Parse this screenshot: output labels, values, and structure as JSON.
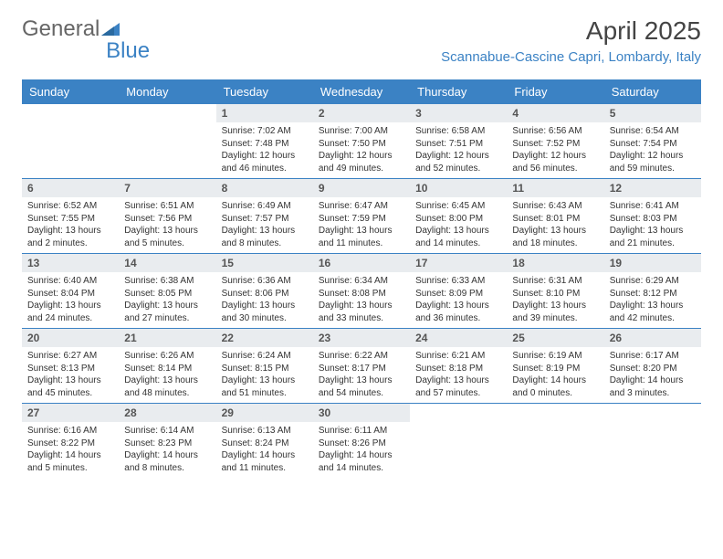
{
  "brand": {
    "part1": "General",
    "part2": "Blue"
  },
  "title": "April 2025",
  "location": "Scannabue-Cascine Capri, Lombardy, Italy",
  "colors": {
    "header_bg": "#3b82c4",
    "header_text": "#ffffff",
    "daynum_bg": "#e9ecef",
    "divider": "#3b82c4",
    "logo_blue": "#3b82c4",
    "logo_gray": "#666666"
  },
  "days_of_week": [
    "Sunday",
    "Monday",
    "Tuesday",
    "Wednesday",
    "Thursday",
    "Friday",
    "Saturday"
  ],
  "weeks": [
    [
      null,
      null,
      {
        "n": "1",
        "sunrise": "7:02 AM",
        "sunset": "7:48 PM",
        "daylight": "12 hours and 46 minutes."
      },
      {
        "n": "2",
        "sunrise": "7:00 AM",
        "sunset": "7:50 PM",
        "daylight": "12 hours and 49 minutes."
      },
      {
        "n": "3",
        "sunrise": "6:58 AM",
        "sunset": "7:51 PM",
        "daylight": "12 hours and 52 minutes."
      },
      {
        "n": "4",
        "sunrise": "6:56 AM",
        "sunset": "7:52 PM",
        "daylight": "12 hours and 56 minutes."
      },
      {
        "n": "5",
        "sunrise": "6:54 AM",
        "sunset": "7:54 PM",
        "daylight": "12 hours and 59 minutes."
      }
    ],
    [
      {
        "n": "6",
        "sunrise": "6:52 AM",
        "sunset": "7:55 PM",
        "daylight": "13 hours and 2 minutes."
      },
      {
        "n": "7",
        "sunrise": "6:51 AM",
        "sunset": "7:56 PM",
        "daylight": "13 hours and 5 minutes."
      },
      {
        "n": "8",
        "sunrise": "6:49 AM",
        "sunset": "7:57 PM",
        "daylight": "13 hours and 8 minutes."
      },
      {
        "n": "9",
        "sunrise": "6:47 AM",
        "sunset": "7:59 PM",
        "daylight": "13 hours and 11 minutes."
      },
      {
        "n": "10",
        "sunrise": "6:45 AM",
        "sunset": "8:00 PM",
        "daylight": "13 hours and 14 minutes."
      },
      {
        "n": "11",
        "sunrise": "6:43 AM",
        "sunset": "8:01 PM",
        "daylight": "13 hours and 18 minutes."
      },
      {
        "n": "12",
        "sunrise": "6:41 AM",
        "sunset": "8:03 PM",
        "daylight": "13 hours and 21 minutes."
      }
    ],
    [
      {
        "n": "13",
        "sunrise": "6:40 AM",
        "sunset": "8:04 PM",
        "daylight": "13 hours and 24 minutes."
      },
      {
        "n": "14",
        "sunrise": "6:38 AM",
        "sunset": "8:05 PM",
        "daylight": "13 hours and 27 minutes."
      },
      {
        "n": "15",
        "sunrise": "6:36 AM",
        "sunset": "8:06 PM",
        "daylight": "13 hours and 30 minutes."
      },
      {
        "n": "16",
        "sunrise": "6:34 AM",
        "sunset": "8:08 PM",
        "daylight": "13 hours and 33 minutes."
      },
      {
        "n": "17",
        "sunrise": "6:33 AM",
        "sunset": "8:09 PM",
        "daylight": "13 hours and 36 minutes."
      },
      {
        "n": "18",
        "sunrise": "6:31 AM",
        "sunset": "8:10 PM",
        "daylight": "13 hours and 39 minutes."
      },
      {
        "n": "19",
        "sunrise": "6:29 AM",
        "sunset": "8:12 PM",
        "daylight": "13 hours and 42 minutes."
      }
    ],
    [
      {
        "n": "20",
        "sunrise": "6:27 AM",
        "sunset": "8:13 PM",
        "daylight": "13 hours and 45 minutes."
      },
      {
        "n": "21",
        "sunrise": "6:26 AM",
        "sunset": "8:14 PM",
        "daylight": "13 hours and 48 minutes."
      },
      {
        "n": "22",
        "sunrise": "6:24 AM",
        "sunset": "8:15 PM",
        "daylight": "13 hours and 51 minutes."
      },
      {
        "n": "23",
        "sunrise": "6:22 AM",
        "sunset": "8:17 PM",
        "daylight": "13 hours and 54 minutes."
      },
      {
        "n": "24",
        "sunrise": "6:21 AM",
        "sunset": "8:18 PM",
        "daylight": "13 hours and 57 minutes."
      },
      {
        "n": "25",
        "sunrise": "6:19 AM",
        "sunset": "8:19 PM",
        "daylight": "14 hours and 0 minutes."
      },
      {
        "n": "26",
        "sunrise": "6:17 AM",
        "sunset": "8:20 PM",
        "daylight": "14 hours and 3 minutes."
      }
    ],
    [
      {
        "n": "27",
        "sunrise": "6:16 AM",
        "sunset": "8:22 PM",
        "daylight": "14 hours and 5 minutes."
      },
      {
        "n": "28",
        "sunrise": "6:14 AM",
        "sunset": "8:23 PM",
        "daylight": "14 hours and 8 minutes."
      },
      {
        "n": "29",
        "sunrise": "6:13 AM",
        "sunset": "8:24 PM",
        "daylight": "14 hours and 11 minutes."
      },
      {
        "n": "30",
        "sunrise": "6:11 AM",
        "sunset": "8:26 PM",
        "daylight": "14 hours and 14 minutes."
      },
      null,
      null,
      null
    ]
  ],
  "labels": {
    "sunrise": "Sunrise:",
    "sunset": "Sunset:",
    "daylight": "Daylight:"
  }
}
